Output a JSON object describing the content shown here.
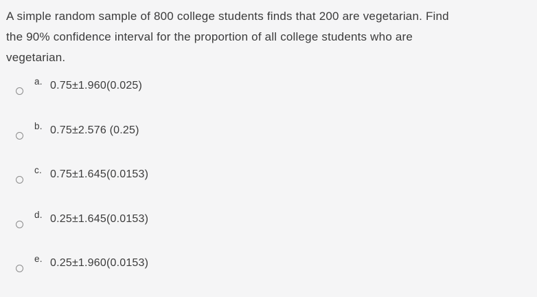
{
  "question": {
    "lines": [
      "A simple random sample of 800 college students finds that 200 are vegetarian. Find",
      "the 90% confidence interval for the proportion of all college students who are",
      "vegetarian."
    ],
    "full_text": "A simple random sample of 800 college students finds that 200 are vegetarian. Find the 90% confidence interval for the proportion of all college students who are vegetarian."
  },
  "options": [
    {
      "letter": "a.",
      "text": "0.75±1.960(0.025)"
    },
    {
      "letter": "b.",
      "text": "0.75±2.576 (0.25)"
    },
    {
      "letter": "c.",
      "text": "0.75±1.645(0.0153)"
    },
    {
      "letter": "d.",
      "text": "0.25±1.645(0.0153)"
    },
    {
      "letter": "e.",
      "text": "0.25±1.960(0.0153)"
    }
  ],
  "colors": {
    "background": "#f5f5f6",
    "text": "#3b3b3b",
    "radio_border": "#8c8c8c"
  }
}
